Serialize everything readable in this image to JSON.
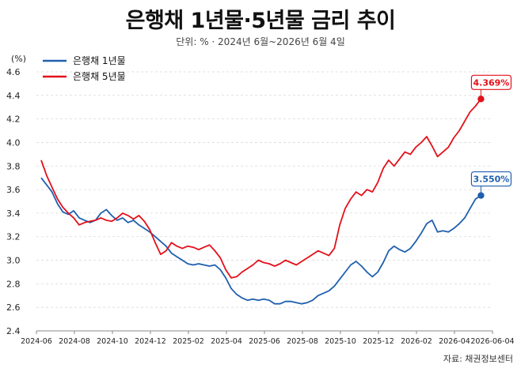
{
  "header": {
    "title": "은행채 1년물·5년물 금리 추이",
    "subtitle": "단위: %  ·  2024년 6월~2026년 6월 4일"
  },
  "footer": {
    "source": "자료: 채권정보센터"
  },
  "colors": {
    "series_1y": "#1f5fae",
    "series_5y": "#e3101a",
    "grid": "#d9d9d9"
  },
  "chart_data": {
    "type": "line",
    "title": "은행채 1년물·5년물 금리 추이",
    "ylabel": "(%)",
    "xlabel": "",
    "ylim": [
      2.4,
      4.6
    ],
    "yticks": [
      "4.6",
      "4.4",
      "4.2",
      "4.0",
      "3.8",
      "3.6",
      "3.4",
      "3.2",
      "3.0",
      "2.8",
      "2.6",
      "2.4"
    ],
    "xticks": [
      "2024-06",
      "2024-08",
      "2024-10",
      "2024-12",
      "2025-02",
      "2025-04",
      "2025-06",
      "2025-08",
      "2025-10",
      "2025-12",
      "2026-02",
      "2026-04",
      "2026-06-04"
    ],
    "grid": "horizontal dashed",
    "legend_position": "top-left",
    "series": [
      {
        "name": "은행채 1년물",
        "end_label": "3.550%",
        "points": [
          [
            0,
            3.7
          ],
          [
            1,
            3.64
          ],
          [
            2,
            3.58
          ],
          [
            3,
            3.48
          ],
          [
            4,
            3.41
          ],
          [
            5,
            3.39
          ],
          [
            6,
            3.42
          ],
          [
            7,
            3.36
          ],
          [
            8,
            3.34
          ],
          [
            9,
            3.32
          ],
          [
            10,
            3.34
          ],
          [
            11,
            3.4
          ],
          [
            12,
            3.43
          ],
          [
            13,
            3.38
          ],
          [
            14,
            3.34
          ],
          [
            15,
            3.36
          ],
          [
            16,
            3.32
          ],
          [
            17,
            3.34
          ],
          [
            18,
            3.3
          ],
          [
            19,
            3.27
          ],
          [
            20,
            3.24
          ],
          [
            21,
            3.2
          ],
          [
            22,
            3.16
          ],
          [
            23,
            3.12
          ],
          [
            24,
            3.06
          ],
          [
            25,
            3.03
          ],
          [
            26,
            3.0
          ],
          [
            27,
            2.97
          ],
          [
            28,
            2.96
          ],
          [
            29,
            2.97
          ],
          [
            30,
            2.96
          ],
          [
            31,
            2.95
          ],
          [
            32,
            2.96
          ],
          [
            33,
            2.92
          ],
          [
            34,
            2.85
          ],
          [
            35,
            2.76
          ],
          [
            36,
            2.71
          ],
          [
            37,
            2.68
          ],
          [
            38,
            2.66
          ],
          [
            39,
            2.67
          ],
          [
            40,
            2.66
          ],
          [
            41,
            2.67
          ],
          [
            42,
            2.66
          ],
          [
            43,
            2.63
          ],
          [
            44,
            2.63
          ],
          [
            45,
            2.65
          ],
          [
            46,
            2.65
          ],
          [
            47,
            2.64
          ],
          [
            48,
            2.63
          ],
          [
            49,
            2.64
          ],
          [
            50,
            2.66
          ],
          [
            51,
            2.7
          ],
          [
            52,
            2.72
          ],
          [
            53,
            2.74
          ],
          [
            54,
            2.78
          ],
          [
            55,
            2.84
          ],
          [
            56,
            2.9
          ],
          [
            57,
            2.96
          ],
          [
            58,
            2.99
          ],
          [
            59,
            2.95
          ],
          [
            60,
            2.9
          ],
          [
            61,
            2.86
          ],
          [
            62,
            2.9
          ],
          [
            63,
            2.98
          ],
          [
            64,
            3.08
          ],
          [
            65,
            3.12
          ],
          [
            66,
            3.09
          ],
          [
            67,
            3.07
          ],
          [
            68,
            3.1
          ],
          [
            69,
            3.16
          ],
          [
            70,
            3.23
          ],
          [
            71,
            3.31
          ],
          [
            72,
            3.34
          ],
          [
            73,
            3.24
          ],
          [
            74,
            3.25
          ],
          [
            75,
            3.24
          ],
          [
            76,
            3.27
          ],
          [
            77,
            3.31
          ],
          [
            78,
            3.36
          ],
          [
            79,
            3.44
          ],
          [
            80,
            3.52
          ],
          [
            81,
            3.55
          ]
        ]
      },
      {
        "name": "은행채 5년물",
        "end_label": "4.369%",
        "points": [
          [
            0,
            3.85
          ],
          [
            1,
            3.72
          ],
          [
            2,
            3.62
          ],
          [
            3,
            3.52
          ],
          [
            4,
            3.45
          ],
          [
            5,
            3.4
          ],
          [
            6,
            3.36
          ],
          [
            7,
            3.3
          ],
          [
            8,
            3.32
          ],
          [
            9,
            3.33
          ],
          [
            10,
            3.34
          ],
          [
            11,
            3.36
          ],
          [
            12,
            3.34
          ],
          [
            13,
            3.33
          ],
          [
            14,
            3.36
          ],
          [
            15,
            3.4
          ],
          [
            16,
            3.38
          ],
          [
            17,
            3.35
          ],
          [
            18,
            3.38
          ],
          [
            19,
            3.33
          ],
          [
            20,
            3.26
          ],
          [
            21,
            3.15
          ],
          [
            22,
            3.05
          ],
          [
            23,
            3.08
          ],
          [
            24,
            3.15
          ],
          [
            25,
            3.12
          ],
          [
            26,
            3.1
          ],
          [
            27,
            3.12
          ],
          [
            28,
            3.11
          ],
          [
            29,
            3.09
          ],
          [
            30,
            3.11
          ],
          [
            31,
            3.13
          ],
          [
            32,
            3.08
          ],
          [
            33,
            3.02
          ],
          [
            34,
            2.92
          ],
          [
            35,
            2.85
          ],
          [
            36,
            2.86
          ],
          [
            37,
            2.9
          ],
          [
            38,
            2.93
          ],
          [
            39,
            2.96
          ],
          [
            40,
            3.0
          ],
          [
            41,
            2.98
          ],
          [
            42,
            2.97
          ],
          [
            43,
            2.95
          ],
          [
            44,
            2.97
          ],
          [
            45,
            3.0
          ],
          [
            46,
            2.98
          ],
          [
            47,
            2.96
          ],
          [
            48,
            2.99
          ],
          [
            49,
            3.02
          ],
          [
            50,
            3.05
          ],
          [
            51,
            3.08
          ],
          [
            52,
            3.06
          ],
          [
            53,
            3.04
          ],
          [
            54,
            3.1
          ],
          [
            55,
            3.3
          ],
          [
            56,
            3.44
          ],
          [
            57,
            3.52
          ],
          [
            58,
            3.58
          ],
          [
            59,
            3.55
          ],
          [
            60,
            3.6
          ],
          [
            61,
            3.58
          ],
          [
            62,
            3.66
          ],
          [
            63,
            3.78
          ],
          [
            64,
            3.85
          ],
          [
            65,
            3.8
          ],
          [
            66,
            3.86
          ],
          [
            67,
            3.92
          ],
          [
            68,
            3.9
          ],
          [
            69,
            3.96
          ],
          [
            70,
            4.0
          ],
          [
            71,
            4.05
          ],
          [
            72,
            3.97
          ],
          [
            73,
            3.88
          ],
          [
            74,
            3.92
          ],
          [
            75,
            3.96
          ],
          [
            76,
            4.04
          ],
          [
            77,
            4.1
          ],
          [
            78,
            4.18
          ],
          [
            79,
            4.26
          ],
          [
            80,
            4.31
          ],
          [
            81,
            4.37
          ]
        ]
      }
    ]
  }
}
